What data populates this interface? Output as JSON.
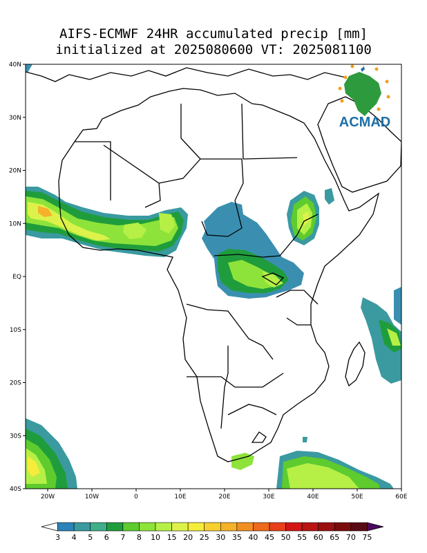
{
  "title": {
    "line1": "AIFS-ECMWF 24HR accumulated precip [mm]",
    "line2": "initialized at 2025080600 VT: 2025081100"
  },
  "logo": {
    "text": "ACMAD"
  },
  "axes": {
    "lat_ticks": [
      "40N",
      "30N",
      "20N",
      "10N",
      "EQ",
      "10S",
      "20S",
      "30S",
      "40S"
    ],
    "lon_ticks": [
      "20W",
      "10W",
      "0",
      "10E",
      "20E",
      "30E",
      "40E",
      "50E",
      "60E"
    ],
    "lon_range": [
      -25,
      60
    ],
    "lat_range": [
      -40,
      40
    ]
  },
  "colorbar": {
    "levels": [
      "3",
      "4",
      "5",
      "6",
      "7",
      "8",
      "10",
      "15",
      "20",
      "25",
      "30",
      "35",
      "40",
      "45",
      "50",
      "55",
      "60",
      "65",
      "70",
      "75"
    ],
    "colors": [
      "#ffffff",
      "#2b83ba",
      "#3a9aa0",
      "#3fae8a",
      "#1f9d3c",
      "#5ecb2e",
      "#8ee33a",
      "#b6f046",
      "#dcf24a",
      "#f5ec3c",
      "#f7d030",
      "#f5b12a",
      "#f28f22",
      "#ee6a1c",
      "#e8401a",
      "#d21616",
      "#b81414",
      "#9a1010",
      "#7a0c0c",
      "#5a0a14",
      "#4b0a5e"
    ]
  },
  "colors": {
    "ocean_rain_blue": "#3a8fb0",
    "low": "#39a26b",
    "mid": "#5ecb2e",
    "high": "#c7ef47",
    "peak": "#f2d33a"
  }
}
